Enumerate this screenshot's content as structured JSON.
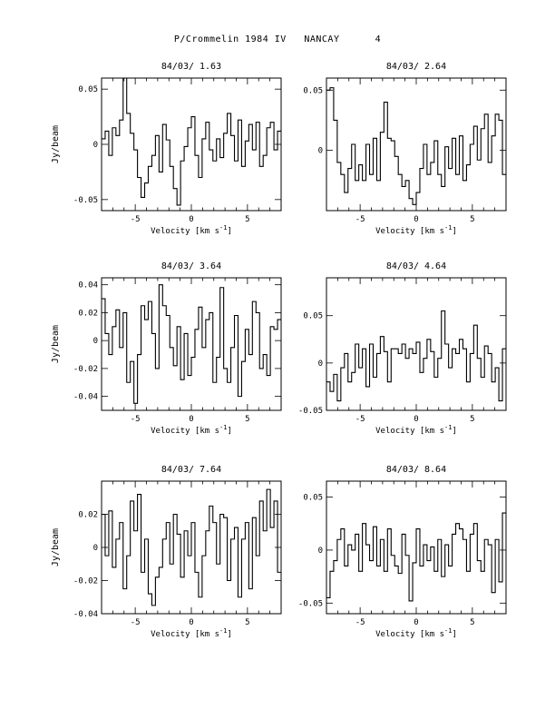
{
  "page": {
    "title": "P/Crommelin 1984 IV   NANCAY      4"
  },
  "chart_data": [
    {
      "type": "line",
      "title": "84/03/ 1.63",
      "xlabel": "Velocity [km s^-1]",
      "ylabel": "Jy/beam",
      "xlim": [
        -8,
        8
      ],
      "ylim": [
        -0.06,
        0.06
      ],
      "xticks": [
        -5,
        0,
        5
      ],
      "yticks": [
        -0.05,
        0,
        0.05
      ],
      "ytick_labels": [
        "-0.05",
        "0",
        "0.05"
      ],
      "x": [
        -8.0,
        -7.68,
        -7.36,
        -7.04,
        -6.72,
        -6.4,
        -6.08,
        -5.76,
        -5.44,
        -5.12,
        -4.8,
        -4.48,
        -4.16,
        -3.84,
        -3.52,
        -3.2,
        -2.88,
        -2.56,
        -2.24,
        -1.92,
        -1.6,
        -1.28,
        -0.96,
        -0.64,
        -0.32,
        0.0,
        0.32,
        0.64,
        0.96,
        1.28,
        1.6,
        1.92,
        2.24,
        2.56,
        2.88,
        3.2,
        3.52,
        3.84,
        4.16,
        4.48,
        4.8,
        5.12,
        5.44,
        5.76,
        6.08,
        6.4,
        6.72,
        7.04,
        7.36,
        7.68
      ],
      "y": [
        0.005,
        0.012,
        -0.01,
        0.015,
        0.008,
        0.022,
        0.06,
        0.028,
        0.01,
        -0.005,
        -0.03,
        -0.048,
        -0.035,
        -0.02,
        -0.01,
        0.008,
        -0.025,
        0.018,
        0.004,
        -0.02,
        -0.04,
        -0.055,
        -0.015,
        -0.002,
        0.015,
        0.025,
        -0.01,
        -0.03,
        0.005,
        0.02,
        -0.005,
        -0.015,
        0.005,
        -0.012,
        0.01,
        0.028,
        0.008,
        -0.015,
        0.022,
        -0.02,
        0.003,
        0.018,
        -0.005,
        0.02,
        -0.02,
        -0.01,
        0.015,
        0.02,
        -0.005,
        0.012
      ]
    },
    {
      "type": "line",
      "title": "84/03/ 2.64",
      "xlabel": "Velocity [km s^-1]",
      "ylabel": "",
      "xlim": [
        -8,
        8
      ],
      "ylim": [
        -0.05,
        0.06
      ],
      "xticks": [
        -5,
        0,
        5
      ],
      "yticks": [
        0,
        0.05
      ],
      "ytick_labels": [
        "0",
        "0.05"
      ],
      "x": [
        -8.0,
        -7.68,
        -7.36,
        -7.04,
        -6.72,
        -6.4,
        -6.08,
        -5.76,
        -5.44,
        -5.12,
        -4.8,
        -4.48,
        -4.16,
        -3.84,
        -3.52,
        -3.2,
        -2.88,
        -2.56,
        -2.24,
        -1.92,
        -1.6,
        -1.28,
        -0.96,
        -0.64,
        -0.32,
        0.0,
        0.32,
        0.64,
        0.96,
        1.28,
        1.6,
        1.92,
        2.24,
        2.56,
        2.88,
        3.2,
        3.52,
        3.84,
        4.16,
        4.48,
        4.8,
        5.12,
        5.44,
        5.76,
        6.08,
        6.4,
        6.72,
        7.04,
        7.36,
        7.68
      ],
      "y": [
        0.05,
        0.052,
        0.025,
        -0.01,
        -0.02,
        -0.035,
        -0.015,
        0.005,
        -0.025,
        -0.012,
        -0.025,
        0.005,
        -0.02,
        0.01,
        -0.025,
        0.015,
        0.04,
        0.01,
        0.008,
        -0.005,
        -0.02,
        -0.03,
        -0.025,
        -0.04,
        -0.045,
        -0.035,
        -0.015,
        0.005,
        -0.02,
        -0.01,
        0.008,
        -0.02,
        -0.03,
        0.003,
        -0.015,
        0.01,
        -0.02,
        0.012,
        -0.025,
        -0.012,
        0.005,
        0.02,
        -0.008,
        0.018,
        0.03,
        -0.01,
        0.012,
        0.03,
        0.025,
        -0.02
      ]
    },
    {
      "type": "line",
      "title": "84/03/ 3.64",
      "xlabel": "Velocity [km s^-1]",
      "ylabel": "Jy/beam",
      "xlim": [
        -8,
        8
      ],
      "ylim": [
        -0.05,
        0.045
      ],
      "xticks": [
        -5,
        0,
        5
      ],
      "yticks": [
        -0.04,
        -0.02,
        0,
        0.02,
        0.04
      ],
      "ytick_labels": [
        "-0.04",
        "-0.02",
        "0",
        "0.02",
        "0.04"
      ],
      "x": [
        -8.0,
        -7.68,
        -7.36,
        -7.04,
        -6.72,
        -6.4,
        -6.08,
        -5.76,
        -5.44,
        -5.12,
        -4.8,
        -4.48,
        -4.16,
        -3.84,
        -3.52,
        -3.2,
        -2.88,
        -2.56,
        -2.24,
        -1.92,
        -1.6,
        -1.28,
        -0.96,
        -0.64,
        -0.32,
        0.0,
        0.32,
        0.64,
        0.96,
        1.28,
        1.6,
        1.92,
        2.24,
        2.56,
        2.88,
        3.2,
        3.52,
        3.84,
        4.16,
        4.48,
        4.8,
        5.12,
        5.44,
        5.76,
        6.08,
        6.4,
        6.72,
        7.04,
        7.36,
        7.68
      ],
      "y": [
        0.03,
        0.005,
        -0.01,
        0.01,
        0.022,
        -0.005,
        0.02,
        -0.03,
        -0.015,
        -0.045,
        -0.01,
        0.025,
        0.015,
        0.028,
        0.005,
        -0.02,
        0.04,
        0.025,
        0.018,
        -0.005,
        -0.018,
        0.01,
        -0.028,
        0.005,
        -0.025,
        -0.012,
        0.008,
        0.024,
        -0.005,
        0.015,
        0.02,
        -0.03,
        -0.012,
        0.038,
        -0.02,
        -0.03,
        -0.005,
        0.018,
        -0.04,
        -0.015,
        0.008,
        -0.01,
        0.028,
        0.02,
        -0.02,
        -0.01,
        -0.025,
        0.01,
        0.008,
        0.015
      ]
    },
    {
      "type": "line",
      "title": "84/03/ 4.64",
      "xlabel": "Velocity [km s^-1]",
      "ylabel": "",
      "xlim": [
        -8,
        8
      ],
      "ylim": [
        -0.05,
        0.09
      ],
      "xticks": [
        -5,
        0,
        5
      ],
      "yticks": [
        -0.05,
        0,
        0.05
      ],
      "ytick_labels": [
        "-0.05",
        "0",
        "0.05"
      ],
      "x": [
        -8.0,
        -7.68,
        -7.36,
        -7.04,
        -6.72,
        -6.4,
        -6.08,
        -5.76,
        -5.44,
        -5.12,
        -4.8,
        -4.48,
        -4.16,
        -3.84,
        -3.52,
        -3.2,
        -2.88,
        -2.56,
        -2.24,
        -1.92,
        -1.6,
        -1.28,
        -0.96,
        -0.64,
        -0.32,
        0.0,
        0.32,
        0.64,
        0.96,
        1.28,
        1.6,
        1.92,
        2.24,
        2.56,
        2.88,
        3.2,
        3.52,
        3.84,
        4.16,
        4.48,
        4.8,
        5.12,
        5.44,
        5.76,
        6.08,
        6.4,
        6.72,
        7.04,
        7.36,
        7.68
      ],
      "y": [
        -0.02,
        -0.03,
        -0.012,
        -0.04,
        -0.005,
        0.01,
        -0.02,
        -0.01,
        0.02,
        -0.005,
        0.015,
        -0.025,
        0.02,
        -0.015,
        0.01,
        0.028,
        0.012,
        -0.02,
        0.015,
        0.015,
        0.01,
        0.02,
        0.005,
        0.015,
        0.01,
        0.022,
        -0.01,
        0.005,
        0.025,
        0.012,
        -0.015,
        0.005,
        0.055,
        0.02,
        -0.005,
        0.015,
        0.01,
        0.025,
        0.015,
        -0.02,
        0.01,
        0.04,
        0.005,
        -0.015,
        0.018,
        0.01,
        -0.02,
        -0.005,
        -0.04,
        0.015
      ]
    },
    {
      "type": "line",
      "title": "84/03/ 7.64",
      "xlabel": "Velocity [km s^-1]",
      "ylabel": "Jy/beam",
      "xlim": [
        -8,
        8
      ],
      "ylim": [
        -0.04,
        0.04
      ],
      "xticks": [
        -5,
        0,
        5
      ],
      "yticks": [
        -0.04,
        -0.02,
        0,
        0.02
      ],
      "ytick_labels": [
        "-0.04",
        "-0.02",
        "0",
        "0.02"
      ],
      "x": [
        -8.0,
        -7.68,
        -7.36,
        -7.04,
        -6.72,
        -6.4,
        -6.08,
        -5.76,
        -5.44,
        -5.12,
        -4.8,
        -4.48,
        -4.16,
        -3.84,
        -3.52,
        -3.2,
        -2.88,
        -2.56,
        -2.24,
        -1.92,
        -1.6,
        -1.28,
        -0.96,
        -0.64,
        -0.32,
        0.0,
        0.32,
        0.64,
        0.96,
        1.28,
        1.6,
        1.92,
        2.24,
        2.56,
        2.88,
        3.2,
        3.52,
        3.84,
        4.16,
        4.48,
        4.8,
        5.12,
        5.44,
        5.76,
        6.08,
        6.4,
        6.72,
        7.04,
        7.36,
        7.68
      ],
      "y": [
        0.02,
        -0.005,
        0.022,
        -0.012,
        0.005,
        0.015,
        -0.025,
        -0.005,
        0.028,
        0.01,
        0.032,
        -0.015,
        0.005,
        -0.028,
        -0.035,
        -0.018,
        -0.012,
        0.005,
        0.015,
        -0.01,
        0.02,
        0.008,
        -0.018,
        0.01,
        -0.005,
        0.015,
        -0.015,
        -0.03,
        -0.005,
        0.01,
        0.025,
        0.015,
        -0.01,
        0.02,
        0.018,
        -0.02,
        0.005,
        0.012,
        -0.03,
        0.005,
        0.015,
        -0.025,
        0.018,
        -0.005,
        0.028,
        0.01,
        0.035,
        0.012,
        0.028,
        -0.015
      ]
    },
    {
      "type": "line",
      "title": "84/03/ 8.64",
      "xlabel": "Velocity [km s^-1]",
      "ylabel": "",
      "xlim": [
        -8,
        8
      ],
      "ylim": [
        -0.06,
        0.065
      ],
      "xticks": [
        -5,
        0,
        5
      ],
      "yticks": [
        -0.05,
        0,
        0.05
      ],
      "ytick_labels": [
        "-0.05",
        "0",
        "0.05"
      ],
      "x": [
        -8.0,
        -7.68,
        -7.36,
        -7.04,
        -6.72,
        -6.4,
        -6.08,
        -5.76,
        -5.44,
        -5.12,
        -4.8,
        -4.48,
        -4.16,
        -3.84,
        -3.52,
        -3.2,
        -2.88,
        -2.56,
        -2.24,
        -1.92,
        -1.6,
        -1.28,
        -0.96,
        -0.64,
        -0.32,
        0.0,
        0.32,
        0.64,
        0.96,
        1.28,
        1.6,
        1.92,
        2.24,
        2.56,
        2.88,
        3.2,
        3.52,
        3.84,
        4.16,
        4.48,
        4.8,
        5.12,
        5.44,
        5.76,
        6.08,
        6.4,
        6.72,
        7.04,
        7.36,
        7.68
      ],
      "y": [
        -0.045,
        -0.02,
        -0.01,
        0.01,
        0.02,
        -0.015,
        0.005,
        0.0,
        0.015,
        -0.02,
        0.025,
        0.005,
        -0.01,
        0.022,
        -0.015,
        0.01,
        -0.02,
        0.02,
        -0.005,
        -0.015,
        -0.022,
        0.015,
        -0.005,
        -0.048,
        -0.012,
        0.02,
        -0.015,
        0.005,
        -0.01,
        0.003,
        -0.02,
        0.01,
        -0.025,
        0.005,
        -0.015,
        0.015,
        0.025,
        0.02,
        0.01,
        -0.02,
        0.015,
        0.025,
        -0.01,
        -0.02,
        0.01,
        0.005,
        -0.04,
        0.01,
        -0.03,
        0.035
      ]
    }
  ]
}
